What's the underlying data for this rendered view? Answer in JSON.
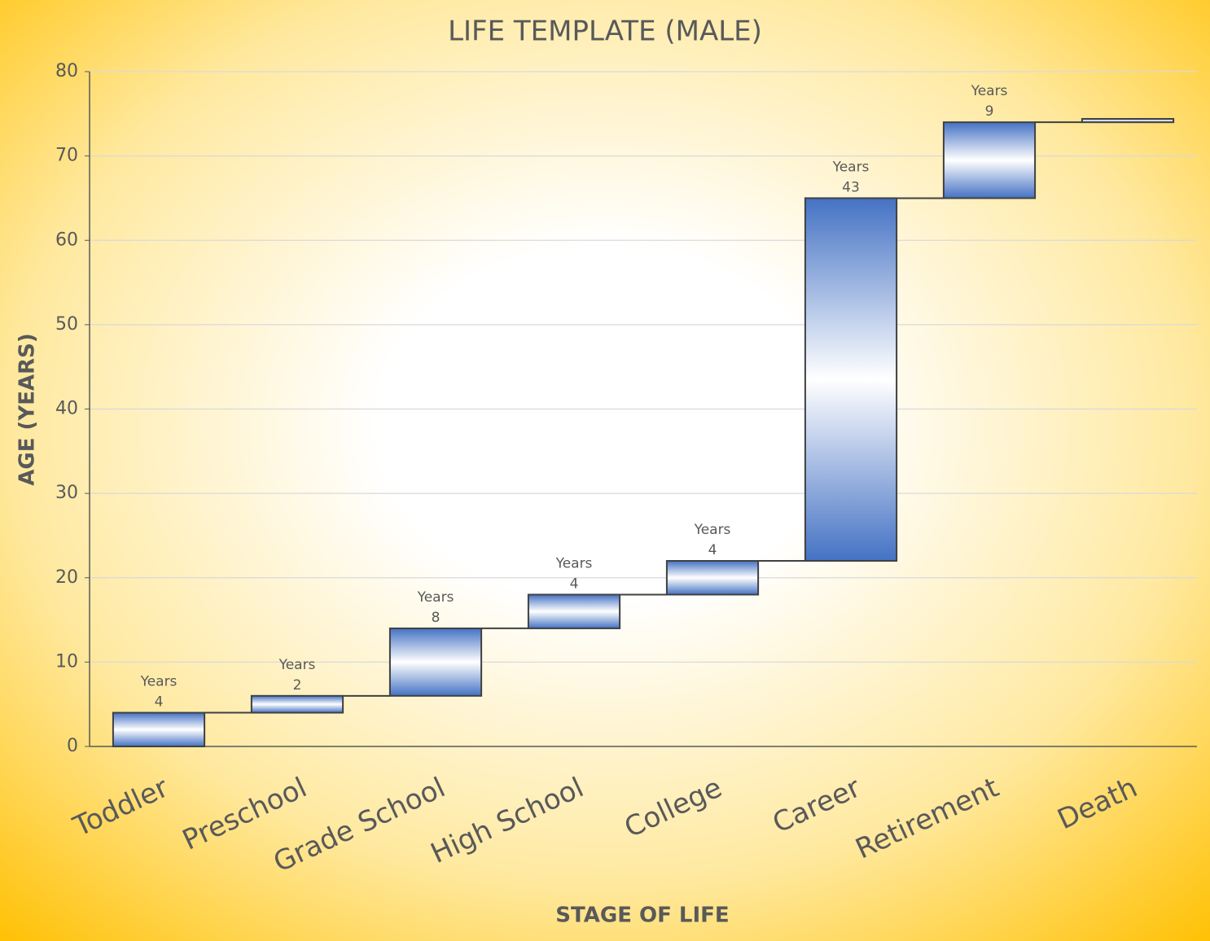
{
  "chart_data": {
    "type": "waterfall",
    "title": "LIFE TEMPLATE (MALE)",
    "x_label": "STAGE OF LIFE",
    "y_label": "AGE (YEARS)",
    "categories": [
      "Toddler",
      "Preschool",
      "Grade School",
      "High School",
      "College",
      "Career",
      "Retirement",
      "Death"
    ],
    "values": [
      4,
      2,
      8,
      4,
      4,
      43,
      9,
      0.4
    ],
    "value_labels": [
      "Years 4",
      "Years 2",
      "Years 8",
      "Years 4",
      "Years 4",
      "Years 43",
      "Years 9",
      null
    ],
    "color": "#4472c4",
    "ylim": [
      0,
      80
    ],
    "yticks": [
      0,
      10,
      20,
      30,
      40,
      50,
      60,
      70,
      80
    ],
    "grid": true
  }
}
